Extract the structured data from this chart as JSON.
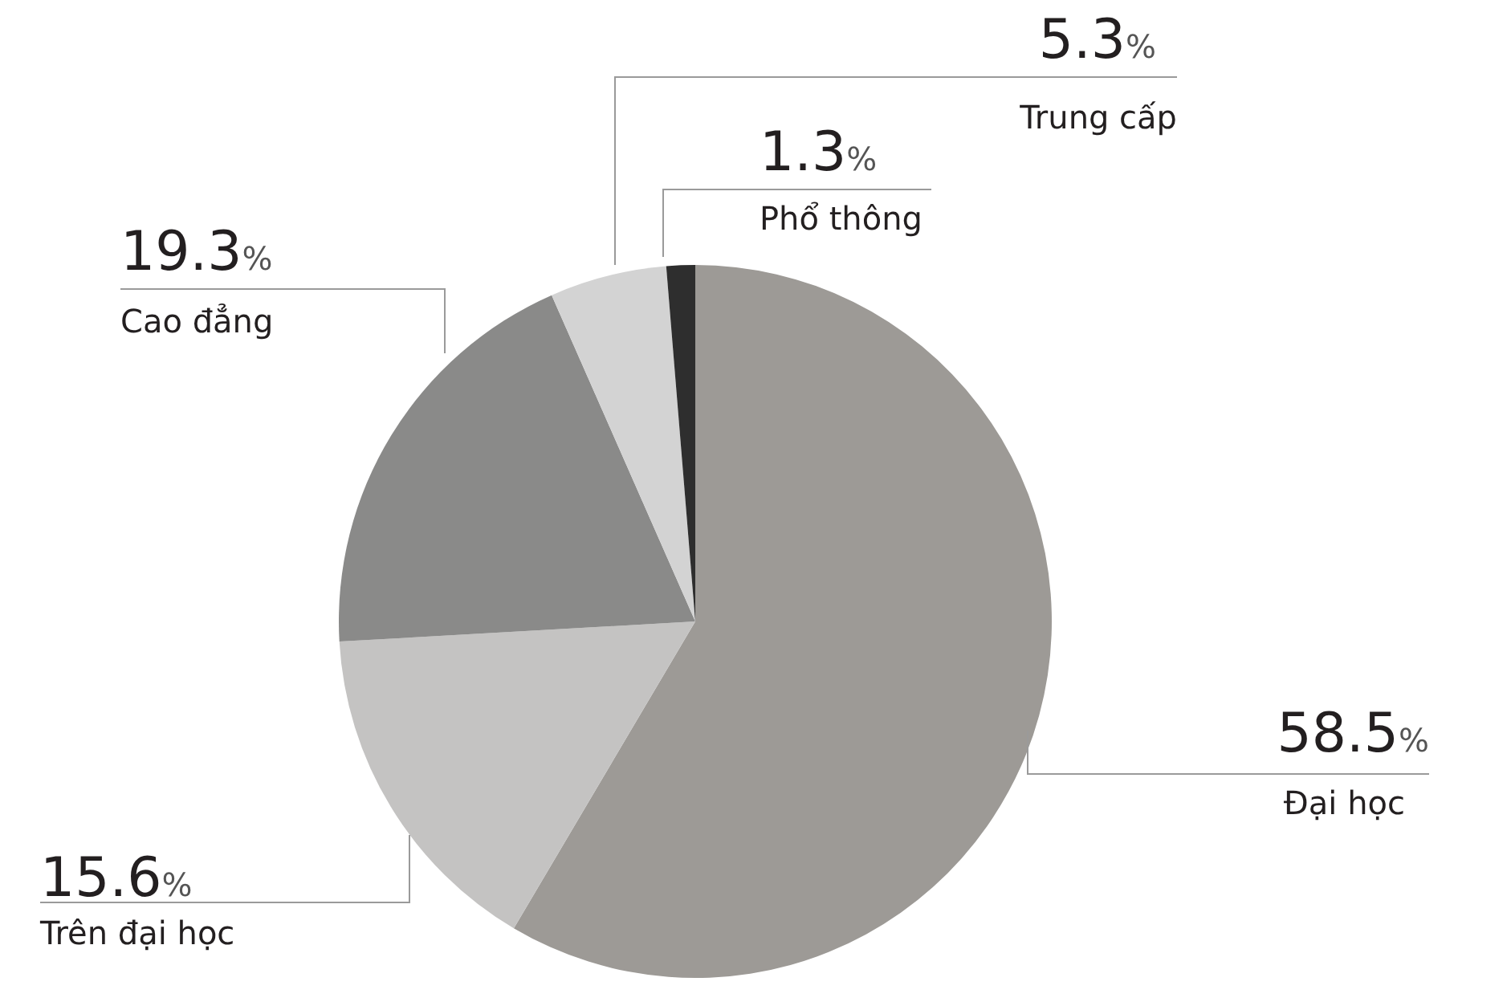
{
  "chart_data": {
    "type": "pie",
    "categories": [
      "Đại học",
      "Trên đại học",
      "Cao đẳng",
      "Trung cấp",
      "Phổ thông"
    ],
    "values": [
      58.5,
      15.6,
      19.3,
      5.3,
      1.3
    ],
    "colors": [
      "#9d9a96",
      "#c4c3c2",
      "#8a8a89",
      "#d3d3d3",
      "#2e2e2e"
    ],
    "value_labels": [
      "58.5%",
      "15.6%",
      "19.3%",
      "5.3%",
      "1.3%"
    ]
  }
}
